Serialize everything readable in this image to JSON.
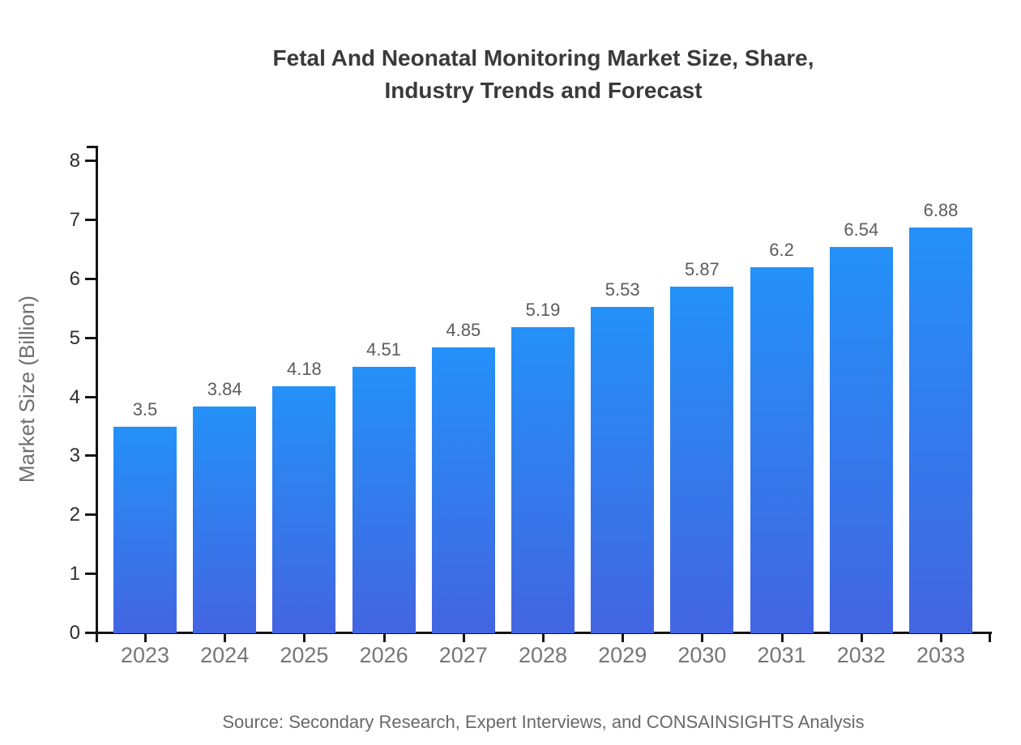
{
  "header": {
    "title_line1": "Fetal And Neonatal Monitoring Market Size, Share,",
    "title_line2": "Industry Trends and Forecast"
  },
  "footer": {
    "source": "Source: Secondary Research, Expert Interviews, and CONSAINSIGHTS Analysis"
  },
  "chart_data": {
    "type": "bar",
    "title": "Fetal And Neonatal Monitoring Market Size, Share, Industry Trends and Forecast",
    "categories": [
      "2023",
      "2024",
      "2025",
      "2026",
      "2027",
      "2028",
      "2029",
      "2030",
      "2031",
      "2032",
      "2033"
    ],
    "values": [
      3.5,
      3.84,
      4.18,
      4.51,
      4.85,
      5.19,
      5.53,
      5.87,
      6.2,
      6.54,
      6.88
    ],
    "value_labels": [
      "3.5",
      "3.84",
      "4.18",
      "4.51",
      "4.85",
      "5.19",
      "5.53",
      "5.87",
      "6.2",
      "6.54",
      "6.88"
    ],
    "xlabel": "",
    "ylabel": "Market Size (Billion)",
    "ylim": [
      0,
      8
    ],
    "yticks": [
      0,
      1,
      2,
      3,
      4,
      5,
      6,
      7,
      8
    ],
    "grid": false,
    "legend": false,
    "bar_color_top": "#2491f8",
    "bar_color_bottom": "#4365e1",
    "source": "Source: Secondary Research, Expert Interviews, and CONSAINSIGHTS Analysis"
  },
  "colors": {
    "background": "#ffffff",
    "title": "#3a3a3a",
    "axis": "#141414",
    "y_tick_label": "#2e2e2e",
    "x_category_label": "#767676",
    "value_label": "#5c5c5c",
    "y_axis_title": "#6e6e6e",
    "source": "#696969"
  }
}
